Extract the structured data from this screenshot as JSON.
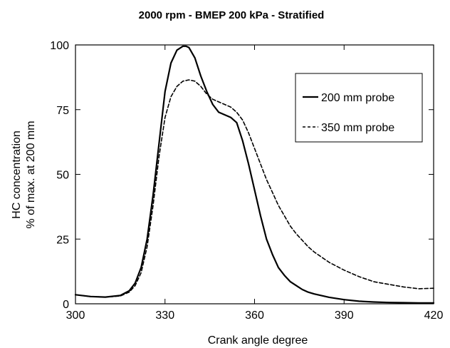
{
  "chart_data": {
    "type": "line",
    "title": "2000 rpm - BMEP 200 kPa - Stratified",
    "xlabel": "Crank angle degree",
    "ylabel_line1": "HC concentration",
    "ylabel_line2": "% of max. at 200 mm",
    "xlim": [
      300,
      420
    ],
    "ylim": [
      0,
      100
    ],
    "x_ticks": [
      300,
      330,
      360,
      390,
      420
    ],
    "y_ticks": [
      0,
      25,
      50,
      75,
      100
    ],
    "grid": false,
    "legend_position": "top-right",
    "series": [
      {
        "name": "200 mm probe",
        "style": "solid",
        "color": "#000000",
        "x": [
          300,
          305,
          310,
          315,
          318,
          320,
          322,
          324,
          326,
          328,
          330,
          332,
          334,
          336,
          337,
          338,
          340,
          342,
          344,
          346,
          348,
          350,
          352,
          354,
          356,
          358,
          360,
          362,
          364,
          366,
          368,
          370,
          372,
          374,
          376,
          378,
          380,
          385,
          390,
          395,
          400,
          405,
          410,
          415,
          420
        ],
        "y": [
          3.5,
          2.8,
          2.6,
          3.2,
          5,
          8,
          14,
          25,
          42,
          62,
          82,
          93,
          98,
          99.5,
          99.5,
          99,
          95,
          88,
          82,
          77,
          74,
          73,
          72,
          70,
          63,
          54,
          44,
          34,
          25,
          19,
          14,
          11,
          8.5,
          7,
          5.5,
          4.5,
          3.8,
          2.5,
          1.6,
          1,
          0.7,
          0.5,
          0.4,
          0.3,
          0.3
        ]
      },
      {
        "name": "350 mm probe",
        "style": "dashed",
        "color": "#000000",
        "x": [
          300,
          305,
          310,
          315,
          318,
          320,
          322,
          324,
          326,
          328,
          330,
          332,
          334,
          336,
          338,
          340,
          342,
          344,
          346,
          348,
          350,
          352,
          354,
          356,
          358,
          360,
          362,
          364,
          366,
          368,
          370,
          372,
          374,
          376,
          378,
          380,
          385,
          390,
          395,
          400,
          405,
          410,
          415,
          420
        ],
        "y": [
          3.5,
          2.8,
          2.6,
          3,
          4.5,
          7,
          12,
          22,
          38,
          57,
          72,
          80,
          84,
          86,
          86.5,
          86,
          84,
          81,
          79,
          78,
          77,
          76,
          74,
          71,
          66,
          60,
          54,
          48,
          43,
          38,
          34,
          30,
          27,
          24.5,
          22,
          20,
          16,
          13,
          10.5,
          8.5,
          7.5,
          6.5,
          5.8,
          6
        ]
      }
    ]
  }
}
